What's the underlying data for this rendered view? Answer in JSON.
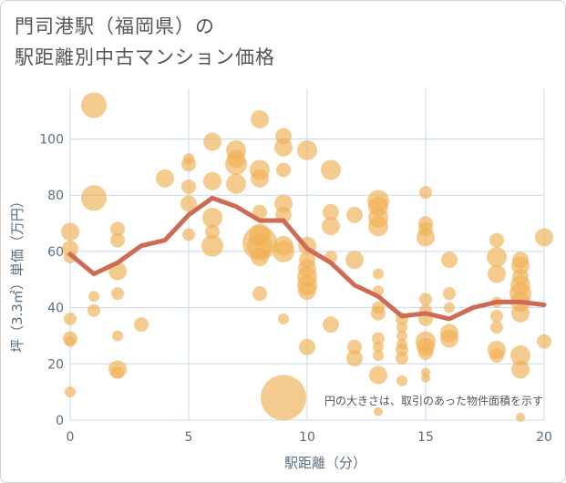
{
  "title_line1": "門司港駅（福岡県）の",
  "title_line2": "駅距離別中古マンション価格",
  "colors": {
    "bubble": "#f0b055",
    "line": "#cd6b55",
    "grid": "#c9d8e8"
  },
  "chart_data": {
    "type": "scatter",
    "xlabel": "駅距離（分）",
    "ylabel": "坪（3.3㎡）単価（万円）",
    "xlim": [
      0,
      20
    ],
    "ylim": [
      0,
      118
    ],
    "xticks": [
      0,
      5,
      10,
      15,
      20
    ],
    "yticks": [
      0,
      20,
      40,
      60,
      80,
      100
    ],
    "note": "円の大きさは、取引のあった物件面積を示す",
    "trend": {
      "x": [
        0,
        1,
        2,
        3,
        4,
        5,
        6,
        7,
        8,
        9,
        10,
        11,
        12,
        13,
        14,
        15,
        16,
        17,
        18,
        19,
        20
      ],
      "y": [
        59,
        52,
        56,
        62,
        64,
        73,
        79,
        76,
        71,
        71,
        61,
        56,
        48,
        44,
        37,
        38,
        36,
        40,
        42,
        42,
        41
      ]
    },
    "points": [
      {
        "x": 0,
        "y": 67,
        "s": 10
      },
      {
        "x": 0,
        "y": 61,
        "s": 9
      },
      {
        "x": 0,
        "y": 58,
        "s": 7
      },
      {
        "x": 0,
        "y": 36,
        "s": 7
      },
      {
        "x": 0,
        "y": 29,
        "s": 8
      },
      {
        "x": 0,
        "y": 28,
        "s": 6
      },
      {
        "x": 0,
        "y": 10,
        "s": 6
      },
      {
        "x": 1,
        "y": 112,
        "s": 14
      },
      {
        "x": 1,
        "y": 79,
        "s": 14
      },
      {
        "x": 1,
        "y": 44,
        "s": 6
      },
      {
        "x": 1,
        "y": 39,
        "s": 7
      },
      {
        "x": 2,
        "y": 68,
        "s": 8
      },
      {
        "x": 2,
        "y": 64,
        "s": 8
      },
      {
        "x": 2,
        "y": 53,
        "s": 10
      },
      {
        "x": 2,
        "y": 45,
        "s": 7
      },
      {
        "x": 2,
        "y": 30,
        "s": 6
      },
      {
        "x": 2,
        "y": 18,
        "s": 10
      },
      {
        "x": 2,
        "y": 17,
        "s": 7
      },
      {
        "x": 3,
        "y": 34,
        "s": 8
      },
      {
        "x": 4,
        "y": 86,
        "s": 10
      },
      {
        "x": 5,
        "y": 93,
        "s": 6
      },
      {
        "x": 5,
        "y": 91,
        "s": 8
      },
      {
        "x": 5,
        "y": 83,
        "s": 8
      },
      {
        "x": 5,
        "y": 77,
        "s": 9
      },
      {
        "x": 5,
        "y": 66,
        "s": 7
      },
      {
        "x": 6,
        "y": 99,
        "s": 10
      },
      {
        "x": 6,
        "y": 85,
        "s": 10
      },
      {
        "x": 6,
        "y": 72,
        "s": 11
      },
      {
        "x": 6,
        "y": 67,
        "s": 8
      },
      {
        "x": 6,
        "y": 62,
        "s": 12
      },
      {
        "x": 7,
        "y": 96,
        "s": 11
      },
      {
        "x": 7,
        "y": 93,
        "s": 10
      },
      {
        "x": 7,
        "y": 91,
        "s": 12
      },
      {
        "x": 7,
        "y": 84,
        "s": 11
      },
      {
        "x": 8,
        "y": 107,
        "s": 10
      },
      {
        "x": 8,
        "y": 89,
        "s": 11
      },
      {
        "x": 8,
        "y": 86,
        "s": 10
      },
      {
        "x": 8,
        "y": 74,
        "s": 8
      },
      {
        "x": 8,
        "y": 66,
        "s": 12
      },
      {
        "x": 8,
        "y": 63,
        "s": 19
      },
      {
        "x": 8,
        "y": 62,
        "s": 14
      },
      {
        "x": 8,
        "y": 58,
        "s": 10
      },
      {
        "x": 8,
        "y": 45,
        "s": 8
      },
      {
        "x": 9,
        "y": 101,
        "s": 9
      },
      {
        "x": 9,
        "y": 97,
        "s": 10
      },
      {
        "x": 9,
        "y": 89,
        "s": 8
      },
      {
        "x": 9,
        "y": 77,
        "s": 10
      },
      {
        "x": 9,
        "y": 73,
        "s": 9
      },
      {
        "x": 9,
        "y": 62,
        "s": 11
      },
      {
        "x": 9,
        "y": 60,
        "s": 12
      },
      {
        "x": 9,
        "y": 36,
        "s": 6
      },
      {
        "x": 9,
        "y": 8,
        "s": 25
      },
      {
        "x": 10,
        "y": 96,
        "s": 11
      },
      {
        "x": 10,
        "y": 62,
        "s": 10
      },
      {
        "x": 10,
        "y": 57,
        "s": 9
      },
      {
        "x": 10,
        "y": 54,
        "s": 10
      },
      {
        "x": 10,
        "y": 51,
        "s": 11
      },
      {
        "x": 10,
        "y": 48,
        "s": 11
      },
      {
        "x": 10,
        "y": 46,
        "s": 10
      },
      {
        "x": 10,
        "y": 26,
        "s": 9
      },
      {
        "x": 11,
        "y": 89,
        "s": 11
      },
      {
        "x": 11,
        "y": 74,
        "s": 9
      },
      {
        "x": 11,
        "y": 69,
        "s": 10
      },
      {
        "x": 11,
        "y": 58,
        "s": 7
      },
      {
        "x": 11,
        "y": 34,
        "s": 9
      },
      {
        "x": 12,
        "y": 73,
        "s": 9
      },
      {
        "x": 12,
        "y": 57,
        "s": 10
      },
      {
        "x": 12,
        "y": 26,
        "s": 8
      },
      {
        "x": 12,
        "y": 22,
        "s": 9
      },
      {
        "x": 13,
        "y": 78,
        "s": 12
      },
      {
        "x": 13,
        "y": 76,
        "s": 11
      },
      {
        "x": 13,
        "y": 72,
        "s": 11
      },
      {
        "x": 13,
        "y": 69,
        "s": 11
      },
      {
        "x": 13,
        "y": 52,
        "s": 6
      },
      {
        "x": 13,
        "y": 46,
        "s": 6
      },
      {
        "x": 13,
        "y": 40,
        "s": 7
      },
      {
        "x": 13,
        "y": 38,
        "s": 8
      },
      {
        "x": 13,
        "y": 29,
        "s": 7
      },
      {
        "x": 13,
        "y": 26,
        "s": 6
      },
      {
        "x": 13,
        "y": 23,
        "s": 6
      },
      {
        "x": 13,
        "y": 16,
        "s": 10
      },
      {
        "x": 13,
        "y": 3,
        "s": 5
      },
      {
        "x": 14,
        "y": 36,
        "s": 7
      },
      {
        "x": 14,
        "y": 33,
        "s": 6
      },
      {
        "x": 14,
        "y": 30,
        "s": 6
      },
      {
        "x": 14,
        "y": 27,
        "s": 6
      },
      {
        "x": 14,
        "y": 25,
        "s": 7
      },
      {
        "x": 14,
        "y": 22,
        "s": 7
      },
      {
        "x": 14,
        "y": 14,
        "s": 6
      },
      {
        "x": 15,
        "y": 81,
        "s": 7
      },
      {
        "x": 15,
        "y": 70,
        "s": 8
      },
      {
        "x": 15,
        "y": 68,
        "s": 8
      },
      {
        "x": 15,
        "y": 65,
        "s": 10
      },
      {
        "x": 15,
        "y": 43,
        "s": 7
      },
      {
        "x": 15,
        "y": 39,
        "s": 7
      },
      {
        "x": 15,
        "y": 36,
        "s": 8
      },
      {
        "x": 15,
        "y": 28,
        "s": 11
      },
      {
        "x": 15,
        "y": 26,
        "s": 10
      },
      {
        "x": 15,
        "y": 24,
        "s": 8
      },
      {
        "x": 15,
        "y": 17,
        "s": 5
      },
      {
        "x": 15,
        "y": 15,
        "s": 5
      },
      {
        "x": 16,
        "y": 57,
        "s": 9
      },
      {
        "x": 16,
        "y": 45,
        "s": 7
      },
      {
        "x": 16,
        "y": 40,
        "s": 6
      },
      {
        "x": 16,
        "y": 31,
        "s": 10
      },
      {
        "x": 16,
        "y": 29,
        "s": 10
      },
      {
        "x": 18,
        "y": 64,
        "s": 8
      },
      {
        "x": 18,
        "y": 58,
        "s": 11
      },
      {
        "x": 18,
        "y": 52,
        "s": 10
      },
      {
        "x": 18,
        "y": 42,
        "s": 6
      },
      {
        "x": 18,
        "y": 37,
        "s": 7
      },
      {
        "x": 18,
        "y": 33,
        "s": 7
      },
      {
        "x": 18,
        "y": 25,
        "s": 10
      },
      {
        "x": 18,
        "y": 23,
        "s": 8
      },
      {
        "x": 19,
        "y": 57,
        "s": 9
      },
      {
        "x": 19,
        "y": 55,
        "s": 10
      },
      {
        "x": 19,
        "y": 51,
        "s": 9
      },
      {
        "x": 19,
        "y": 48,
        "s": 11
      },
      {
        "x": 19,
        "y": 45,
        "s": 12
      },
      {
        "x": 19,
        "y": 42,
        "s": 11
      },
      {
        "x": 19,
        "y": 38,
        "s": 10
      },
      {
        "x": 19,
        "y": 23,
        "s": 11
      },
      {
        "x": 19,
        "y": 18,
        "s": 10
      },
      {
        "x": 19,
        "y": 1,
        "s": 5
      },
      {
        "x": 20,
        "y": 65,
        "s": 10
      },
      {
        "x": 20,
        "y": 28,
        "s": 8
      }
    ]
  }
}
